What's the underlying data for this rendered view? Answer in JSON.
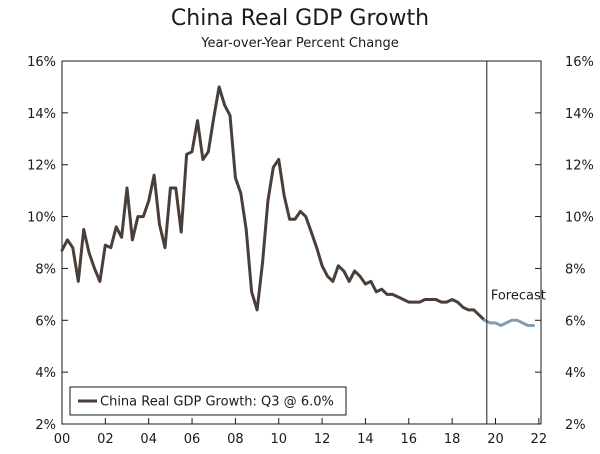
{
  "chart_data": {
    "type": "line",
    "title": "China Real GDP Growth",
    "subtitle": "Year-over-Year Percent Change",
    "ylim": [
      2,
      16
    ],
    "y_ticks": [
      "2%",
      "4%",
      "6%",
      "8%",
      "10%",
      "12%",
      "14%",
      "16%"
    ],
    "y_tick_values": [
      2,
      4,
      6,
      8,
      10,
      12,
      14,
      16
    ],
    "xlim": [
      2000,
      2022.1
    ],
    "x_ticks": [
      "00",
      "02",
      "04",
      "06",
      "08",
      "10",
      "12",
      "14",
      "16",
      "18",
      "20",
      "22"
    ],
    "x_tick_values": [
      2000,
      2002,
      2004,
      2006,
      2008,
      2010,
      2012,
      2014,
      2016,
      2018,
      2020,
      2022
    ],
    "grid": false,
    "legend_position": "bottom-left",
    "forecast_start": 2019.6,
    "forecast_label": "Forecast",
    "colors": {
      "actual": "#4a3f38",
      "forecast": "#7f9db5",
      "axis": "#1a1a1a"
    },
    "series": [
      {
        "name": "China Real GDP Growth: Q3 @ 6.0%",
        "kind": "actual",
        "x": [
          2000.0,
          2000.25,
          2000.5,
          2000.75,
          2001.0,
          2001.25,
          2001.5,
          2001.75,
          2002.0,
          2002.25,
          2002.5,
          2002.75,
          2003.0,
          2003.25,
          2003.5,
          2003.75,
          2004.0,
          2004.25,
          2004.5,
          2004.75,
          2005.0,
          2005.25,
          2005.5,
          2005.75,
          2006.0,
          2006.25,
          2006.5,
          2006.75,
          2007.0,
          2007.25,
          2007.5,
          2007.75,
          2008.0,
          2008.25,
          2008.5,
          2008.75,
          2009.0,
          2009.25,
          2009.5,
          2009.75,
          2010.0,
          2010.25,
          2010.5,
          2010.75,
          2011.0,
          2011.25,
          2011.5,
          2011.75,
          2012.0,
          2012.25,
          2012.5,
          2012.75,
          2013.0,
          2013.25,
          2013.5,
          2013.75,
          2014.0,
          2014.25,
          2014.5,
          2014.75,
          2015.0,
          2015.25,
          2015.5,
          2015.75,
          2016.0,
          2016.25,
          2016.5,
          2016.75,
          2017.0,
          2017.25,
          2017.5,
          2017.75,
          2018.0,
          2018.25,
          2018.5,
          2018.75,
          2019.0,
          2019.25,
          2019.5
        ],
        "values": [
          8.7,
          9.1,
          8.8,
          7.5,
          9.5,
          8.6,
          8.0,
          7.5,
          8.9,
          8.8,
          9.6,
          9.2,
          11.1,
          9.1,
          10.0,
          10.0,
          10.6,
          11.6,
          9.7,
          8.8,
          11.1,
          11.1,
          9.4,
          12.4,
          12.5,
          13.7,
          12.2,
          12.5,
          13.8,
          15.0,
          14.3,
          13.9,
          11.5,
          10.9,
          9.5,
          7.1,
          6.4,
          8.2,
          10.6,
          11.9,
          12.2,
          10.8,
          9.9,
          9.9,
          10.2,
          10.0,
          9.4,
          8.8,
          8.1,
          7.7,
          7.5,
          8.1,
          7.9,
          7.5,
          7.9,
          7.7,
          7.4,
          7.5,
          7.1,
          7.2,
          7.0,
          7.0,
          6.9,
          6.8,
          6.7,
          6.7,
          6.7,
          6.8,
          6.8,
          6.8,
          6.7,
          6.7,
          6.8,
          6.7,
          6.5,
          6.4,
          6.4,
          6.2,
          6.0
        ]
      },
      {
        "kind": "forecast",
        "x": [
          2019.5,
          2019.75,
          2020.0,
          2020.25,
          2020.5,
          2020.75,
          2021.0,
          2021.25,
          2021.5,
          2021.75
        ],
        "values": [
          6.0,
          5.9,
          5.9,
          5.8,
          5.9,
          6.0,
          6.0,
          5.9,
          5.8,
          5.8
        ]
      }
    ]
  }
}
